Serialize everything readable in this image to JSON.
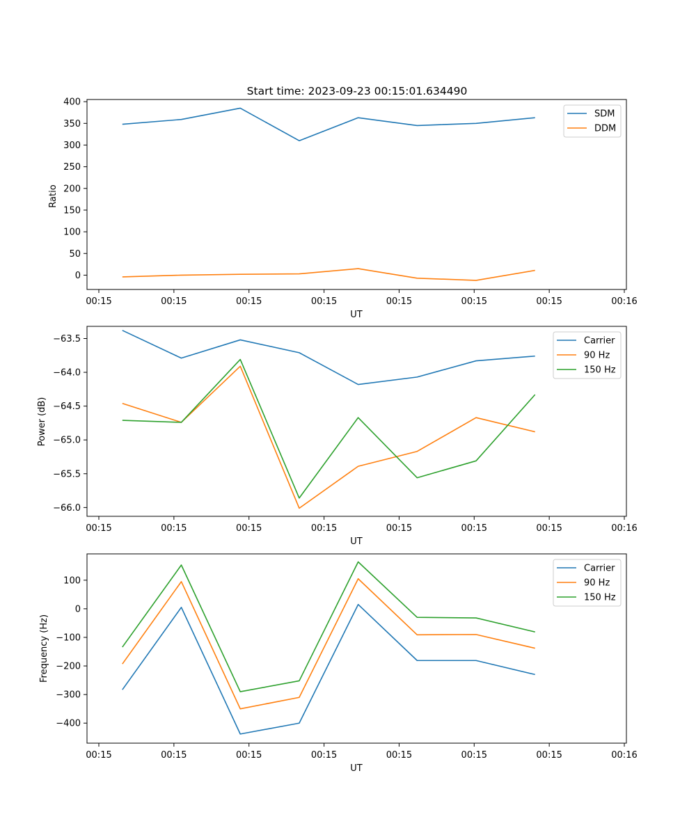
{
  "chart_data": [
    {
      "type": "line",
      "title": "Start time: 2023-09-23 00:15:01.634490",
      "xlabel": "UT",
      "ylabel": "Ratio",
      "x_tick_labels": [
        "00:15",
        "00:15",
        "00:15",
        "00:15",
        "00:15",
        "00:15",
        "00:15",
        "00:16"
      ],
      "x_index_range": [
        -0.6,
        8.55
      ],
      "ylim": [
        -33,
        405
      ],
      "yticks": [
        0,
        50,
        100,
        150,
        200,
        250,
        300,
        350,
        400
      ],
      "legend_position": "top-right",
      "series": [
        {
          "name": "SDM",
          "color": "#1f77b4",
          "values": [
            348,
            359,
            385,
            310,
            363,
            345,
            350,
            363
          ]
        },
        {
          "name": "DDM",
          "color": "#ff7f0e",
          "values": [
            -4,
            0,
            2,
            3,
            15,
            -7,
            -12,
            11
          ]
        }
      ]
    },
    {
      "type": "line",
      "title": "",
      "xlabel": "UT",
      "ylabel": "Power (dB)",
      "x_tick_labels": [
        "00:15",
        "00:15",
        "00:15",
        "00:15",
        "00:15",
        "00:15",
        "00:15",
        "00:16"
      ],
      "x_index_range": [
        -0.6,
        8.55
      ],
      "ylim": [
        -66.13,
        -63.32
      ],
      "yticks": [
        -66.0,
        -65.5,
        -65.0,
        -64.5,
        -64.0,
        -63.5
      ],
      "ytick_labels": [
        "−66.0",
        "−65.5",
        "−65.0",
        "−64.5",
        "−64.0",
        "−63.5"
      ],
      "legend_position": "top-right",
      "series": [
        {
          "name": "Carrier",
          "color": "#1f77b4",
          "values": [
            -63.38,
            -63.79,
            -63.52,
            -63.71,
            -64.18,
            -64.07,
            -63.83,
            -63.76
          ]
        },
        {
          "name": "90 Hz",
          "color": "#ff7f0e",
          "values": [
            -64.46,
            -64.74,
            -63.91,
            -66.01,
            -65.39,
            -65.17,
            -64.67,
            -64.88
          ]
        },
        {
          "name": "150 Hz",
          "color": "#2ca02c",
          "values": [
            -64.71,
            -64.74,
            -63.81,
            -65.86,
            -64.67,
            -65.56,
            -65.31,
            -64.33
          ]
        }
      ]
    },
    {
      "type": "line",
      "title": "",
      "xlabel": "UT",
      "ylabel": "Frequency (Hz)",
      "x_tick_labels": [
        "00:15",
        "00:15",
        "00:15",
        "00:15",
        "00:15",
        "00:15",
        "00:15",
        "00:16"
      ],
      "x_index_range": [
        -0.6,
        8.55
      ],
      "ylim": [
        -470,
        192
      ],
      "yticks": [
        -400,
        -300,
        -200,
        -100,
        0,
        100
      ],
      "ytick_labels": [
        "−400",
        "−300",
        "−200",
        "−100",
        "0",
        "100"
      ],
      "legend_position": "top-right",
      "series": [
        {
          "name": "Carrier",
          "color": "#1f77b4",
          "values": [
            -283,
            5,
            -438,
            -400,
            15,
            -181,
            -181,
            -230
          ]
        },
        {
          "name": "90 Hz",
          "color": "#ff7f0e",
          "values": [
            -193,
            95,
            -350,
            -310,
            105,
            -91,
            -90,
            -138
          ]
        },
        {
          "name": "150 Hz",
          "color": "#2ca02c",
          "values": [
            -134,
            153,
            -290,
            -252,
            164,
            -30,
            -32,
            -81
          ]
        }
      ]
    }
  ]
}
